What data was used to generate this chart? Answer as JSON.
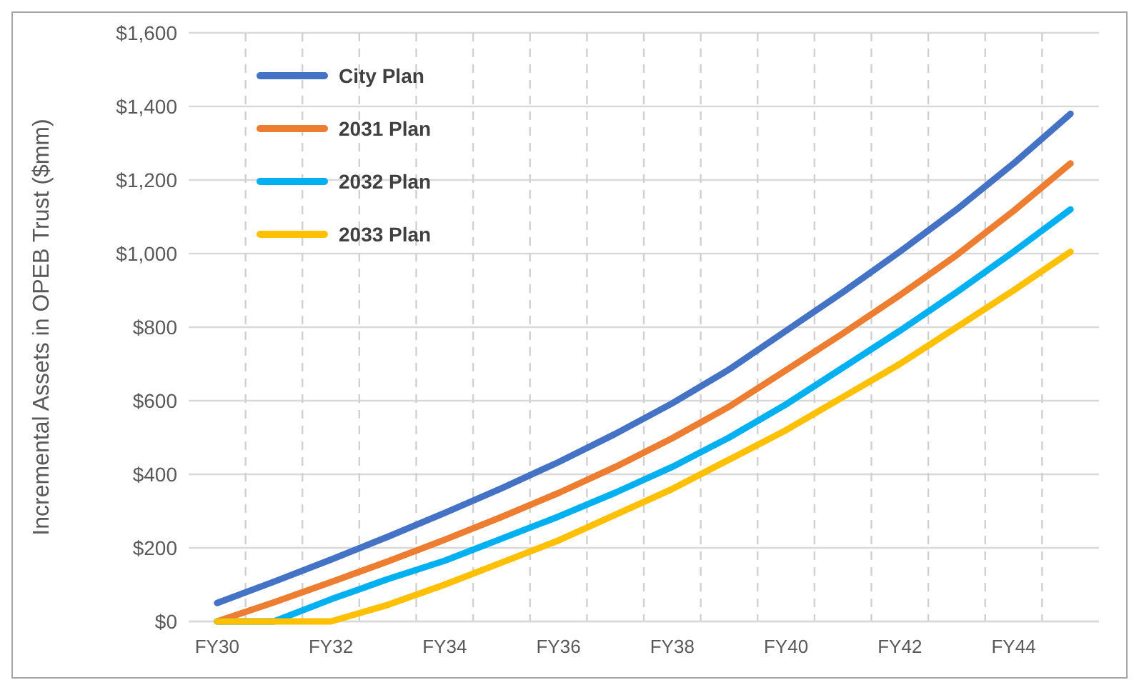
{
  "chart_data": {
    "type": "line",
    "ylabel": "Incremental Assets in OPEB Trust ($mm)",
    "categories": [
      "FY30",
      null,
      "FY32",
      null,
      "FY34",
      null,
      "FY36",
      null,
      "FY38",
      null,
      "FY40",
      null,
      "FY42",
      null,
      "FY44",
      null
    ],
    "series": [
      {
        "name": "City Plan",
        "color": "#4472c4",
        "values": [
          50,
          108,
          168,
          230,
          295,
          362,
          433,
          510,
          593,
          685,
          790,
          895,
          1005,
          1120,
          1245,
          1380
        ]
      },
      {
        "name": "2031 Plan",
        "color": "#ed7d31",
        "values": [
          0,
          52,
          107,
          163,
          222,
          284,
          349,
          420,
          498,
          584,
          683,
          783,
          887,
          996,
          1116,
          1245
        ]
      },
      {
        "name": "2032 Plan",
        "color": "#00b0f0",
        "values": [
          0,
          0,
          60,
          115,
          165,
          225,
          285,
          350,
          420,
          500,
          590,
          690,
          790,
          895,
          1005,
          1120
        ]
      },
      {
        "name": "2033 Plan",
        "color": "#ffc000",
        "values": [
          0,
          0,
          0,
          45,
          100,
          160,
          220,
          290,
          360,
          440,
          520,
          610,
          700,
          800,
          900,
          1005
        ]
      }
    ],
    "ylim": [
      0,
      1600
    ],
    "yticks": [
      {
        "value": 0,
        "label": "$0"
      },
      {
        "value": 200,
        "label": "$200"
      },
      {
        "value": 400,
        "label": "$400"
      },
      {
        "value": 600,
        "label": "$600"
      },
      {
        "value": 800,
        "label": "$800"
      },
      {
        "value": 1000,
        "label": "$1,000"
      },
      {
        "value": 1200,
        "label": "$1,200"
      },
      {
        "value": 1400,
        "label": "$1,400"
      },
      {
        "value": 1600,
        "label": "$1,600"
      }
    ],
    "grid": true,
    "legend": "top left",
    "marker": "none",
    "line_style": "solid"
  }
}
